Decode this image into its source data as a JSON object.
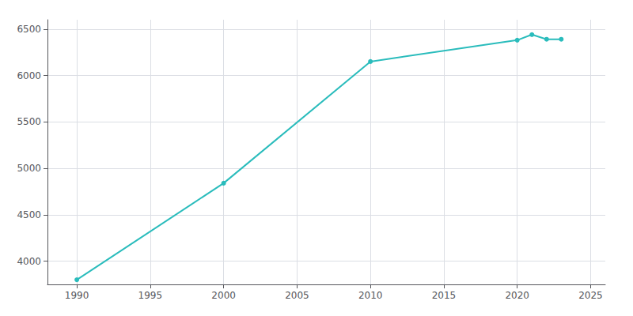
{
  "chart_data": {
    "type": "line",
    "x": [
      1990,
      2000,
      2010,
      2020,
      2021,
      2022,
      2023
    ],
    "values": [
      3800,
      4840,
      6150,
      6380,
      6440,
      6390,
      6390
    ],
    "color": "#2abcbc",
    "marker": "circle",
    "xlim": [
      1988,
      2026
    ],
    "xticks": [
      1990,
      1995,
      2000,
      2005,
      2010,
      2015,
      2020,
      2025
    ],
    "ylim": [
      3750,
      6600
    ],
    "yticks": [
      4000,
      4500,
      5000,
      5500,
      6000,
      6500
    ],
    "grid": true
  }
}
